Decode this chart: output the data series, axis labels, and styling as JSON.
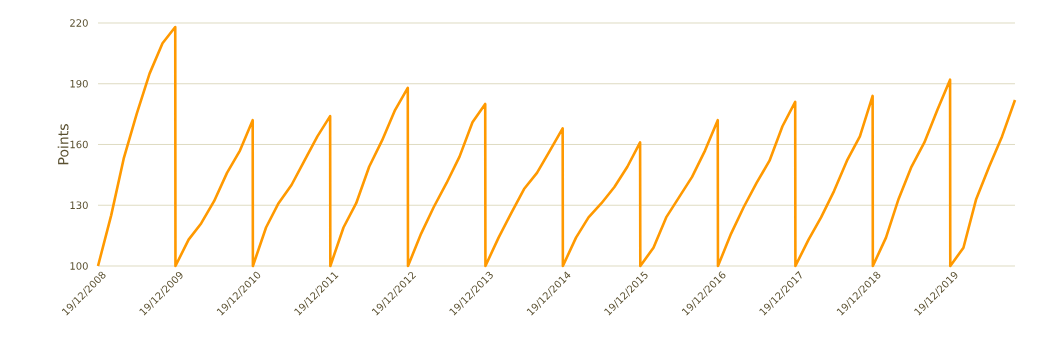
{
  "chart_data": {
    "type": "line",
    "ylabel": "Points",
    "x": [
      "2008-12-19",
      "2009-02-19",
      "2009-04-19",
      "2009-06-19",
      "2009-08-19",
      "2009-10-19",
      "2009-12-18",
      "2009-12-19",
      "2010-02-19",
      "2010-04-19",
      "2010-06-19",
      "2010-08-19",
      "2010-10-19",
      "2010-12-18",
      "2010-12-19",
      "2011-02-19",
      "2011-04-19",
      "2011-06-19",
      "2011-08-19",
      "2011-10-19",
      "2011-12-18",
      "2011-12-19",
      "2012-02-19",
      "2012-04-19",
      "2012-06-19",
      "2012-08-19",
      "2012-10-19",
      "2012-12-18",
      "2012-12-19",
      "2013-02-19",
      "2013-04-19",
      "2013-06-19",
      "2013-08-19",
      "2013-10-19",
      "2013-12-18",
      "2013-12-19",
      "2014-02-19",
      "2014-04-19",
      "2014-06-19",
      "2014-08-19",
      "2014-10-19",
      "2014-12-18",
      "2014-12-19",
      "2015-02-19",
      "2015-04-19",
      "2015-06-19",
      "2015-08-19",
      "2015-10-19",
      "2015-12-18",
      "2015-12-19",
      "2016-02-19",
      "2016-04-19",
      "2016-06-19",
      "2016-08-19",
      "2016-10-19",
      "2016-12-18",
      "2016-12-19",
      "2017-02-19",
      "2017-04-19",
      "2017-06-19",
      "2017-08-19",
      "2017-10-19",
      "2017-12-18",
      "2017-12-19",
      "2018-02-19",
      "2018-04-19",
      "2018-06-19",
      "2018-08-19",
      "2018-10-19",
      "2018-12-18",
      "2018-12-19",
      "2019-02-19",
      "2019-04-19",
      "2019-06-19",
      "2019-08-19",
      "2019-10-19",
      "2019-12-18",
      "2019-12-19",
      "2020-02-19",
      "2020-04-19",
      "2020-06-19",
      "2020-08-19",
      "2020-10-19"
    ],
    "series": [
      {
        "color": "#ff9900",
        "values": [
          100,
          125,
          153,
          175,
          195,
          210,
          218,
          100,
          113,
          121,
          132,
          146,
          157,
          172,
          100,
          119,
          131,
          140,
          152,
          164,
          174,
          100,
          119,
          131,
          149,
          162,
          177,
          188,
          100,
          116,
          129,
          141,
          154,
          171,
          180,
          100,
          114,
          126,
          138,
          146,
          157,
          168,
          100,
          114,
          124,
          131,
          139,
          149,
          161,
          100,
          109,
          124,
          134,
          144,
          157,
          172,
          100,
          116,
          129,
          141,
          152,
          169,
          181,
          100,
          113,
          124,
          137,
          152,
          164,
          184,
          100,
          114,
          133,
          149,
          161,
          177,
          192,
          100,
          109,
          133,
          149,
          164,
          182
        ]
      }
    ],
    "xlim": [
      "2008-12-19",
      "2020-10-19"
    ],
    "xticks": [
      {
        "value": "2008-12-19",
        "label": "19/12/2008"
      },
      {
        "value": "2009-12-19",
        "label": "19/12/2009"
      },
      {
        "value": "2010-12-19",
        "label": "19/12/2010"
      },
      {
        "value": "2011-12-19",
        "label": "19/12/2011"
      },
      {
        "value": "2012-12-19",
        "label": "19/12/2012"
      },
      {
        "value": "2013-12-19",
        "label": "19/12/2013"
      },
      {
        "value": "2014-12-19",
        "label": "19/12/2014"
      },
      {
        "value": "2015-12-19",
        "label": "19/12/2015"
      },
      {
        "value": "2016-12-19",
        "label": "19/12/2016"
      },
      {
        "value": "2017-12-19",
        "label": "19/12/2017"
      },
      {
        "value": "2018-12-19",
        "label": "19/12/2018"
      },
      {
        "value": "2019-12-19",
        "label": "19/12/2019"
      }
    ],
    "ylim": [
      100,
      220
    ],
    "yticks": [
      100,
      130,
      160,
      190,
      220
    ],
    "grid": "y",
    "marker": "none",
    "line_style": "solid"
  }
}
